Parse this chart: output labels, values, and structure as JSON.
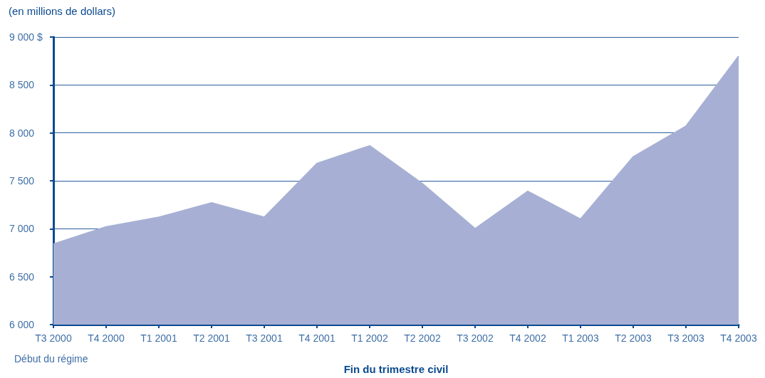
{
  "chart_data": {
    "type": "area",
    "ylabel": "(en millions de dollars)",
    "xlabel": "Fin du trimestre civil",
    "annotations": [
      "Début du régime"
    ],
    "categories": [
      "T3 2000",
      "T4 2000",
      "T1 2001",
      "T2 2001",
      "T3 2001",
      "T4 2001",
      "T1 2002",
      "T2 2002",
      "T3 2002",
      "T4 2002",
      "T1 2003",
      "T2 2003",
      "T3 2003",
      "T4 2003"
    ],
    "series": [
      {
        "color": "#a7b0d4",
        "values": [
          6840,
          7020,
          7120,
          7270,
          7120,
          7680,
          7865,
          7470,
          7000,
          7390,
          7100,
          7750,
          8070,
          8800
        ]
      }
    ],
    "ylim": [
      6000,
      9000
    ],
    "yticks": [
      6000,
      6500,
      7000,
      7500,
      8000,
      8500,
      {
        "value": 9000,
        "label": "9 000 $"
      }
    ],
    "grid": "y",
    "marker": "none"
  }
}
